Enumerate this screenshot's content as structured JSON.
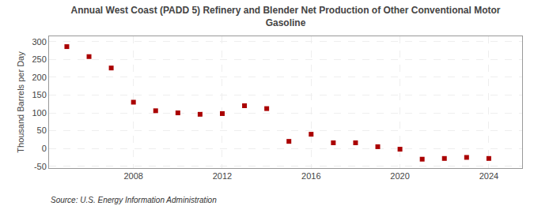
{
  "chart_data": {
    "type": "scatter",
    "title": "Annual West Coast (PADD 5) Refinery and Blender Net Production of Other Conventional Motor\nGasoline",
    "ylabel": "Thousand Barrels per Day",
    "annotation": "Source: U.S. Energy Information Administration",
    "x": [
      2005,
      2006,
      2007,
      2008,
      2009,
      2010,
      2011,
      2012,
      2013,
      2014,
      2015,
      2016,
      2017,
      2018,
      2019,
      2020,
      2021,
      2022,
      2023,
      2024
    ],
    "values": [
      286,
      258,
      226,
      130,
      106,
      100,
      96,
      98,
      120,
      112,
      20,
      40,
      16,
      16,
      5,
      -2,
      -30,
      -28,
      -25,
      -28
    ],
    "color": "#aa0000",
    "marker": "square",
    "xlim": [
      2004.2,
      2025.5
    ],
    "xticks": [
      2008,
      2012,
      2016,
      2020,
      2024
    ],
    "ylim": [
      -55,
      315
    ],
    "yticks": [
      -50,
      0,
      50,
      100,
      150,
      200,
      250,
      300
    ],
    "grid": true
  }
}
